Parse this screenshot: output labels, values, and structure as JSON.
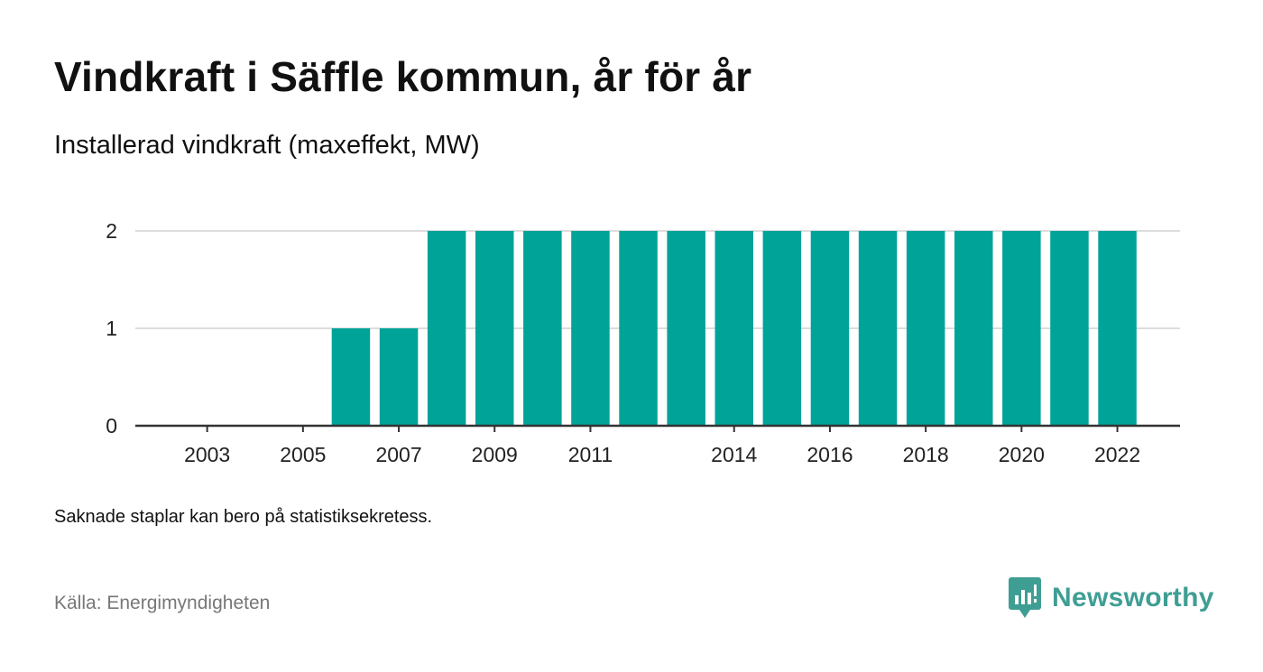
{
  "title": "Vindkraft i Säffle kommun, år för år",
  "subtitle": "Installerad vindkraft (maxeffekt, MW)",
  "note": "Saknade staplar kan bero på statistiksekretess.",
  "source": "Källa: Energimyndigheten",
  "brand": {
    "name": "Newsworthy",
    "icon": "newsworthy-logo-icon",
    "color": "#3f9e94"
  },
  "colors": {
    "bar": "#00a398",
    "grid": "#dddddd",
    "axis": "#333333"
  },
  "chart_data": {
    "type": "bar",
    "categories": [
      "2002",
      "2003",
      "2004",
      "2005",
      "2006",
      "2007",
      "2008",
      "2009",
      "2010",
      "2011",
      "2012",
      "2013",
      "2014",
      "2015",
      "2016",
      "2017",
      "2018",
      "2019",
      "2020",
      "2021",
      "2022"
    ],
    "values": [
      0,
      0,
      0,
      0,
      1,
      1,
      2,
      2,
      2,
      2,
      2,
      2,
      2,
      2,
      2,
      2,
      2,
      2,
      2,
      2,
      2
    ],
    "x_tick_labels": [
      "2003",
      "2005",
      "2007",
      "2009",
      "2011",
      "2014",
      "2016",
      "2018",
      "2020",
      "2022"
    ],
    "y_ticks": [
      0,
      1,
      2
    ],
    "ylim": [
      0,
      2
    ],
    "xlabel": "",
    "ylabel": "",
    "grid": true,
    "legend": "none"
  }
}
